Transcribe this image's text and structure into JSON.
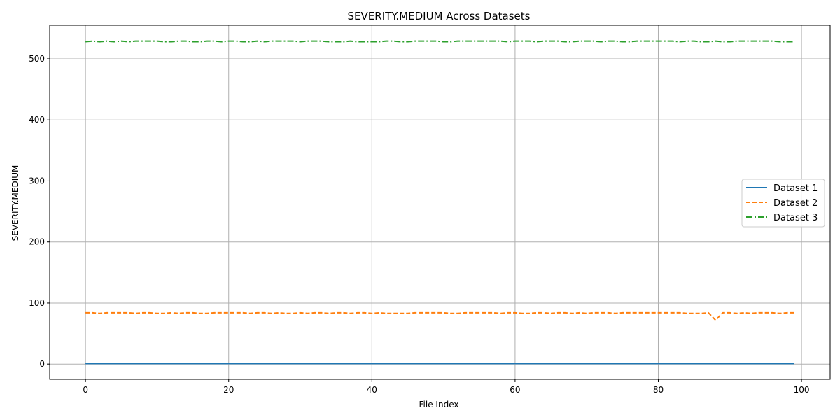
{
  "chart_data": {
    "type": "line",
    "title": "SEVERITY.MEDIUM Across Datasets",
    "xlabel": "File Index",
    "ylabel": "SEVERITY.MEDIUM",
    "xlim": [
      -5,
      104
    ],
    "ylim": [
      -25,
      555
    ],
    "xticks": [
      0,
      20,
      40,
      60,
      80,
      100
    ],
    "yticks": [
      0,
      100,
      200,
      300,
      400,
      500
    ],
    "grid": true,
    "legend_position": "center-right",
    "x": [
      0,
      1,
      2,
      3,
      4,
      5,
      6,
      7,
      8,
      9,
      10,
      11,
      12,
      13,
      14,
      15,
      16,
      17,
      18,
      19,
      20,
      21,
      22,
      23,
      24,
      25,
      26,
      27,
      28,
      29,
      30,
      31,
      32,
      33,
      34,
      35,
      36,
      37,
      38,
      39,
      40,
      41,
      42,
      43,
      44,
      45,
      46,
      47,
      48,
      49,
      50,
      51,
      52,
      53,
      54,
      55,
      56,
      57,
      58,
      59,
      60,
      61,
      62,
      63,
      64,
      65,
      66,
      67,
      68,
      69,
      70,
      71,
      72,
      73,
      74,
      75,
      76,
      77,
      78,
      79,
      80,
      81,
      82,
      83,
      84,
      85,
      86,
      87,
      88,
      89,
      90,
      91,
      92,
      93,
      94,
      95,
      96,
      97,
      98,
      99
    ],
    "series": [
      {
        "name": "Dataset 1",
        "color": "#1f77b4",
        "dash": "solid",
        "values": [
          1,
          1,
          1,
          1,
          1,
          1,
          1,
          1,
          1,
          1,
          1,
          1,
          1,
          1,
          1,
          1,
          1,
          1,
          1,
          1,
          1,
          1,
          1,
          1,
          1,
          1,
          1,
          1,
          1,
          1,
          1,
          1,
          1,
          1,
          1,
          1,
          1,
          1,
          1,
          1,
          1,
          1,
          1,
          1,
          1,
          1,
          1,
          1,
          1,
          1,
          1,
          1,
          1,
          1,
          1,
          1,
          1,
          1,
          1,
          1,
          1,
          1,
          1,
          1,
          1,
          1,
          1,
          1,
          1,
          1,
          1,
          1,
          1,
          1,
          1,
          1,
          1,
          1,
          1,
          1,
          1,
          1,
          1,
          1,
          1,
          1,
          1,
          1,
          1,
          1,
          1,
          1,
          1,
          1,
          1,
          1,
          1,
          1,
          1,
          1
        ]
      },
      {
        "name": "Dataset 2",
        "color": "#ff7f0e",
        "dash": "dashed",
        "values": [
          84,
          84,
          83,
          84,
          84,
          84,
          84,
          83,
          84,
          84,
          83,
          83,
          84,
          83,
          84,
          84,
          83,
          83,
          84,
          84,
          84,
          84,
          84,
          83,
          84,
          84,
          83,
          84,
          83,
          83,
          84,
          83,
          84,
          84,
          83,
          84,
          84,
          83,
          84,
          84,
          83,
          84,
          83,
          83,
          83,
          83,
          84,
          84,
          84,
          84,
          84,
          83,
          83,
          84,
          84,
          84,
          84,
          84,
          83,
          84,
          84,
          83,
          83,
          84,
          84,
          83,
          84,
          84,
          83,
          84,
          83,
          84,
          84,
          84,
          83,
          84,
          84,
          84,
          84,
          84,
          84,
          84,
          84,
          84,
          83,
          83,
          83,
          84,
          72,
          84,
          84,
          83,
          84,
          83,
          84,
          84,
          84,
          83,
          84,
          84
        ]
      },
      {
        "name": "Dataset 3",
        "color": "#2ca02c",
        "dash": "dashdot",
        "values": [
          528,
          529,
          528,
          529,
          528,
          529,
          528,
          529,
          529,
          529,
          529,
          528,
          528,
          529,
          529,
          528,
          528,
          529,
          529,
          528,
          529,
          529,
          528,
          528,
          529,
          528,
          529,
          529,
          529,
          529,
          528,
          529,
          529,
          529,
          528,
          528,
          528,
          529,
          528,
          528,
          528,
          528,
          529,
          529,
          528,
          528,
          529,
          529,
          529,
          529,
          528,
          528,
          529,
          529,
          529,
          529,
          529,
          529,
          529,
          528,
          529,
          529,
          529,
          528,
          529,
          529,
          529,
          528,
          528,
          529,
          529,
          529,
          528,
          529,
          529,
          528,
          528,
          529,
          529,
          529,
          529,
          529,
          529,
          528,
          529,
          529,
          528,
          528,
          529,
          528,
          528,
          529,
          529,
          529,
          529,
          529,
          529,
          528,
          528,
          528
        ]
      }
    ]
  }
}
